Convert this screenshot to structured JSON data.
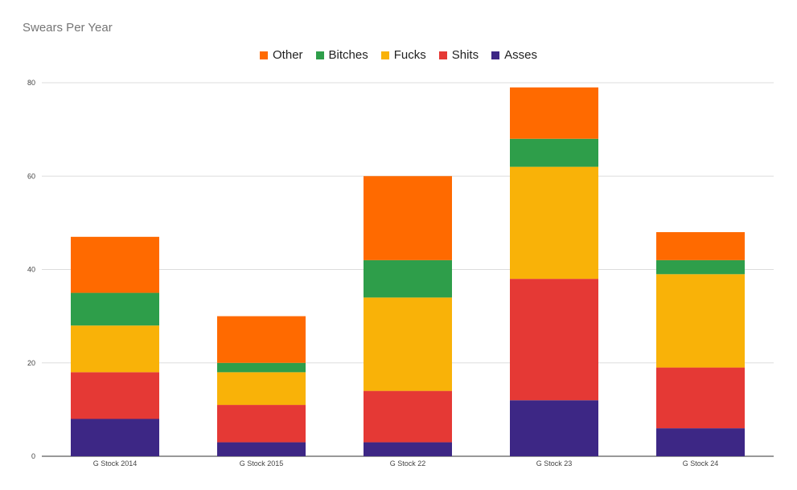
{
  "chart_data": {
    "type": "bar",
    "stacked": true,
    "title": "Swears Per Year",
    "xlabel": "",
    "ylabel": "",
    "ylim": [
      0,
      80
    ],
    "yticks": [
      0,
      20,
      40,
      60,
      80
    ],
    "grid": true,
    "legend_position": "top",
    "categories": [
      "G Stock 2014",
      "G Stock 2015",
      "G Stock 22",
      "G Stock 23",
      "G Stock 24"
    ],
    "series": [
      {
        "name": "Asses",
        "color": "#3d2785",
        "values": [
          8,
          3,
          3,
          12,
          6
        ]
      },
      {
        "name": "Shits",
        "color": "#e53935",
        "values": [
          10,
          8,
          11,
          26,
          13
        ]
      },
      {
        "name": "Fucks",
        "color": "#f9b208",
        "values": [
          10,
          7,
          20,
          24,
          20
        ]
      },
      {
        "name": "Bitches",
        "color": "#2e9e4a",
        "values": [
          7,
          2,
          8,
          6,
          3
        ]
      },
      {
        "name": "Other",
        "color": "#ff6a00",
        "values": [
          12,
          10,
          18,
          11,
          6
        ]
      }
    ],
    "legend_order": [
      "Other",
      "Bitches",
      "Fucks",
      "Shits",
      "Asses"
    ]
  }
}
